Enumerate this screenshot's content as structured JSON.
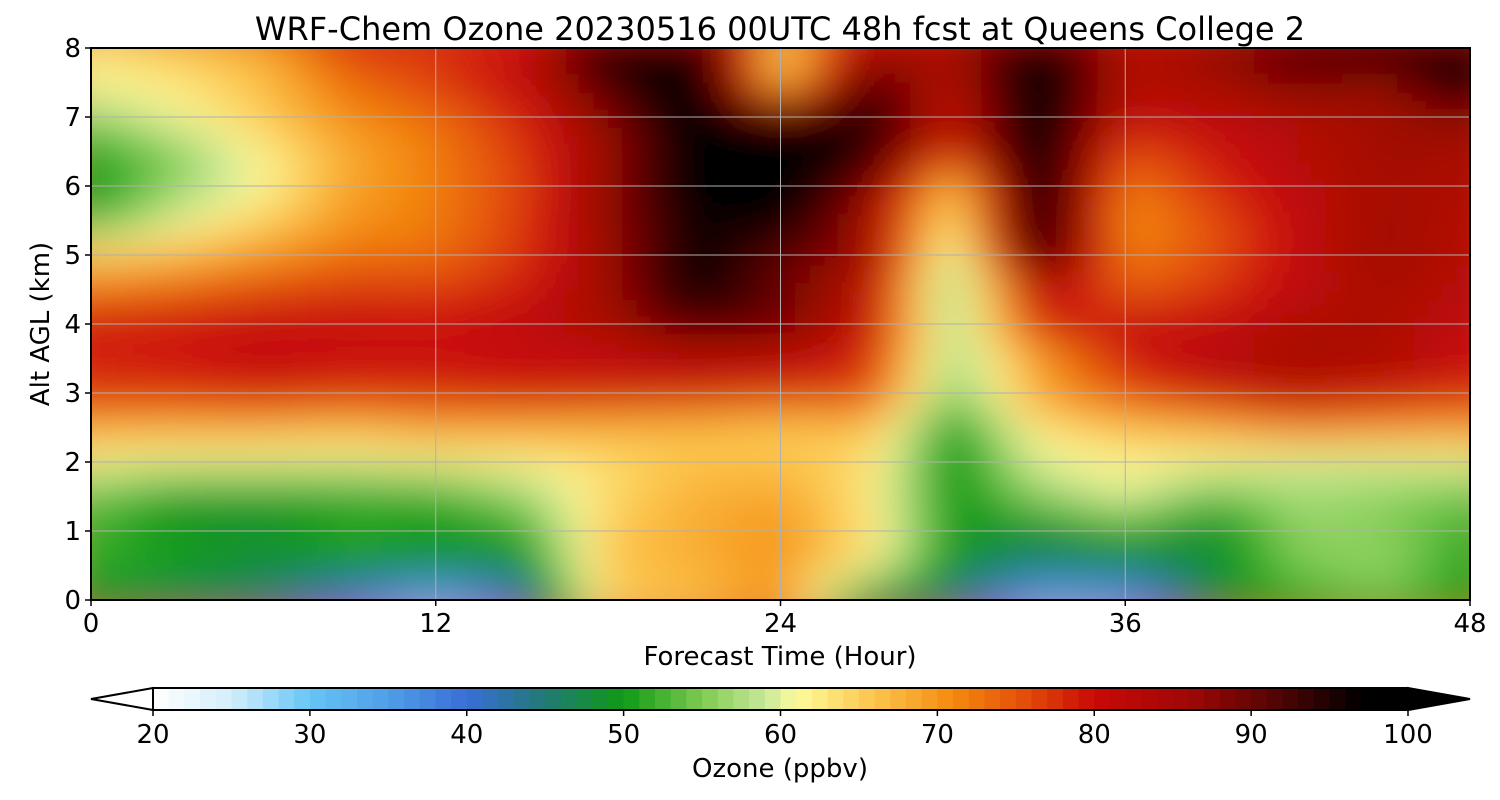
{
  "chart_data": {
    "type": "heatmap",
    "title": "WRF-Chem Ozone  20230516 00UTC 48h fcst at Queens College 2",
    "xlabel": "Forecast Time (Hour)",
    "ylabel": "Alt AGL (km)",
    "xlim": [
      0,
      48
    ],
    "ylim": [
      0,
      8
    ],
    "xticks": [
      0,
      12,
      24,
      36,
      48
    ],
    "yticks": [
      0,
      1,
      2,
      3,
      4,
      5,
      6,
      7,
      8
    ],
    "grid": true,
    "colorbar": {
      "label": "Ozone  (ppbv)",
      "range": [
        20,
        100
      ],
      "ticks": [
        20,
        30,
        40,
        50,
        60,
        70,
        80,
        90,
        100
      ],
      "extend": "both",
      "orientation": "horizontal",
      "colors": [
        {
          "value": 20,
          "color": "#ffffff"
        },
        {
          "value": 25,
          "color": "#d2eefc"
        },
        {
          "value": 30,
          "color": "#66c5f5"
        },
        {
          "value": 35,
          "color": "#4f9ee6"
        },
        {
          "value": 40,
          "color": "#3a6ed8"
        },
        {
          "value": 45,
          "color": "#207a74"
        },
        {
          "value": 50,
          "color": "#0f9a16"
        },
        {
          "value": 55,
          "color": "#7fcb50"
        },
        {
          "value": 59,
          "color": "#c8e89a"
        },
        {
          "value": 61,
          "color": "#fdfb9c"
        },
        {
          "value": 66,
          "color": "#fcc54c"
        },
        {
          "value": 71,
          "color": "#f48a0f"
        },
        {
          "value": 76,
          "color": "#e14709"
        },
        {
          "value": 80,
          "color": "#c90907"
        },
        {
          "value": 86,
          "color": "#a00806"
        },
        {
          "value": 92,
          "color": "#4c0404"
        },
        {
          "value": 97,
          "color": "#000000"
        },
        {
          "value": 100,
          "color": "#000000"
        }
      ]
    },
    "grid_x": [
      0,
      3,
      6,
      9,
      12,
      15,
      18,
      21,
      24,
      27,
      30,
      33,
      36,
      39,
      42,
      45,
      48
    ],
    "grid_y": [
      0,
      0.5,
      1,
      1.5,
      2,
      2.5,
      3,
      3.5,
      4,
      4.5,
      5,
      5.5,
      6,
      6.5,
      7,
      7.5,
      8
    ],
    "z": [
      [
        48,
        46,
        44,
        38,
        30,
        40,
        65,
        66,
        70,
        47,
        44,
        31,
        33,
        47,
        51,
        53,
        50
      ],
      [
        52,
        51,
        49,
        49,
        49,
        48,
        66,
        68,
        70,
        63,
        49,
        47,
        47,
        49,
        55,
        57,
        51
      ],
      [
        52,
        49,
        48,
        52,
        50,
        51,
        66,
        68,
        70,
        64,
        50,
        47,
        51,
        47,
        56,
        55,
        52
      ],
      [
        54,
        50,
        50,
        50,
        51,
        56,
        64,
        68,
        69,
        63,
        49,
        56,
        60,
        54,
        57,
        56,
        54
      ],
      [
        61,
        60,
        60,
        60,
        61,
        62,
        64,
        66,
        66,
        64,
        49,
        60,
        62,
        61,
        59,
        59,
        60
      ],
      [
        68,
        68,
        68,
        67,
        69,
        68,
        67,
        66,
        65,
        66,
        49,
        63,
        66,
        68,
        72,
        71,
        70
      ],
      [
        78,
        78,
        79,
        78,
        78,
        80,
        80,
        80,
        78,
        77,
        55,
        70,
        76,
        80,
        82,
        80,
        78
      ],
      [
        78,
        79,
        81,
        80,
        80,
        80,
        81,
        82,
        82,
        78,
        56,
        68,
        78,
        83,
        86,
        85,
        80
      ],
      [
        80,
        80,
        81,
        81,
        80,
        82,
        85,
        92,
        90,
        82,
        57,
        80,
        82,
        81,
        84,
        84,
        81
      ],
      [
        72,
        74,
        76,
        77,
        77,
        79,
        86,
        97,
        90,
        82,
        55,
        80,
        74,
        77,
        81,
        85,
        82
      ],
      [
        66,
        67,
        70,
        73,
        73,
        77,
        86,
        97,
        90,
        87,
        58,
        97,
        72,
        75,
        81,
        86,
        83
      ],
      [
        52,
        60,
        65,
        70,
        72,
        77,
        87,
        96,
        98,
        84,
        63,
        98,
        70,
        75,
        81,
        86,
        83
      ],
      [
        49,
        56,
        61,
        69,
        72,
        76,
        87,
        99,
        99,
        89,
        64,
        99,
        72,
        78,
        82,
        85,
        84
      ],
      [
        51,
        55,
        62,
        68,
        72,
        77,
        86,
        98,
        99,
        95,
        79,
        99,
        75,
        79,
        83,
        86,
        85
      ],
      [
        56,
        61,
        66,
        71,
        73,
        78,
        88,
        99,
        99,
        95,
        81,
        99,
        82,
        82,
        83,
        86,
        87
      ],
      [
        62,
        63,
        66,
        73,
        77,
        82,
        92,
        99,
        64,
        93,
        83,
        99,
        83,
        85,
        89,
        86,
        97
      ],
      [
        63,
        66,
        69,
        77,
        77,
        79,
        98,
        100,
        63,
        83,
        85,
        98,
        83,
        87,
        92,
        97,
        99
      ]
    ]
  }
}
